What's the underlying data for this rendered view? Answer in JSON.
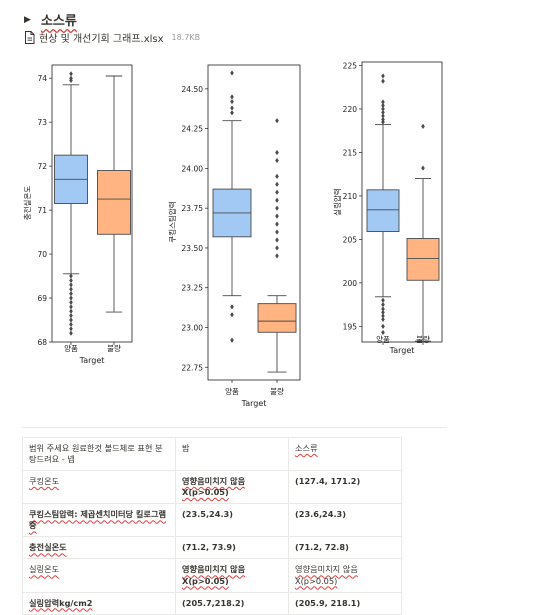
{
  "toggle": {
    "title": "소스류"
  },
  "file": {
    "name": "현상 및 개선기회 그래프.xlsx",
    "size": "18.7KB"
  },
  "chart_data": [
    {
      "type": "box",
      "ylabel": "충전실온도",
      "xlabel": "Target",
      "ylim": [
        68,
        74.3
      ],
      "yticks": [
        68,
        69,
        70,
        71,
        72,
        73,
        74
      ],
      "categories": [
        "양품",
        "불량"
      ],
      "boxes": [
        {
          "whislo": 69.55,
          "q1": 71.15,
          "med": 71.7,
          "q3": 72.25,
          "whishi": 73.85,
          "color": "#a1c9f4",
          "fliers": [
            74.1,
            74.0,
            73.95,
            69.5,
            69.4,
            69.3,
            69.2,
            69.1,
            69.0,
            68.9,
            68.8,
            68.7,
            68.6,
            68.5,
            68.4,
            68.3,
            68.2
          ]
        },
        {
          "whislo": 68.68,
          "q1": 70.45,
          "med": 71.25,
          "q3": 71.9,
          "whishi": 74.05,
          "color": "#ffb482",
          "fliers": []
        }
      ]
    },
    {
      "type": "box",
      "ylabel": "쿠킹스팀압력",
      "xlabel": "Target",
      "ylim": [
        22.67,
        24.65
      ],
      "yticks": [
        22.75,
        23.0,
        23.25,
        23.5,
        23.75,
        24.0,
        24.25,
        24.5
      ],
      "categories": [
        "양품",
        "불량"
      ],
      "boxes": [
        {
          "whislo": 23.2,
          "q1": 23.57,
          "med": 23.72,
          "q3": 23.87,
          "whishi": 24.3,
          "color": "#a1c9f4",
          "fliers": [
            24.6,
            24.45,
            24.42,
            24.38,
            24.35,
            23.13,
            23.08,
            22.92
          ]
        },
        {
          "whislo": 22.72,
          "q1": 22.97,
          "med": 23.04,
          "q3": 23.15,
          "whishi": 23.2,
          "color": "#ffb482",
          "fliers": [
            24.3,
            24.1,
            24.05,
            23.95,
            23.9,
            23.85,
            23.8,
            23.75,
            23.7,
            23.65,
            23.6,
            23.55,
            23.5,
            23.45
          ]
        }
      ]
    },
    {
      "type": "box",
      "ylabel": "실링압력",
      "xlabel": "Target",
      "ylim": [
        193.2,
        225.4
      ],
      "yticks": [
        195,
        200,
        205,
        210,
        215,
        220,
        225
      ],
      "categories": [
        "양품",
        "불량"
      ],
      "boxes": [
        {
          "whislo": 198.4,
          "q1": 205.9,
          "med": 208.4,
          "q3": 210.7,
          "whishi": 218.2,
          "color": "#a1c9f4",
          "fliers": [
            223.8,
            223.2,
            220.8,
            220.4,
            220.0,
            219.6,
            219.2,
            218.8,
            218.5,
            198.0,
            197.5,
            197.0,
            196.6,
            196.2,
            195.8,
            195.0,
            194.3
          ]
        },
        {
          "whislo": 193.3,
          "q1": 200.3,
          "med": 202.8,
          "q3": 205.1,
          "whishi": 212.0,
          "color": "#ffb482",
          "fliers": [
            218.0,
            213.2
          ]
        }
      ]
    }
  ],
  "table": {
    "rows": [
      [
        "범위 주세요 원료한것 볼드체로 표현 분탕드려요 - 넵",
        "밤",
        "소스류"
      ],
      [
        "쿠킹온도",
        "영향음미치지 않음X(p>0.05)",
        "(127.4, 171.2)"
      ],
      [
        "쿠킹스팀압력: 제곱센치미터당 킬로그램중",
        "(23.5,24.3)",
        "(23.6,24.3)"
      ],
      [
        "충전실온도",
        "(71.2, 73.9)",
        "(71.2, 72.8)"
      ],
      [
        "실링온도",
        "영향음미치지 않음X(p>0.05)",
        "영향음미치지 않음X(p>0.05)"
      ],
      [
        "실링압력kg/cm2",
        "(205.7,218.2)",
        "(205.9, 218.1)"
      ]
    ]
  }
}
